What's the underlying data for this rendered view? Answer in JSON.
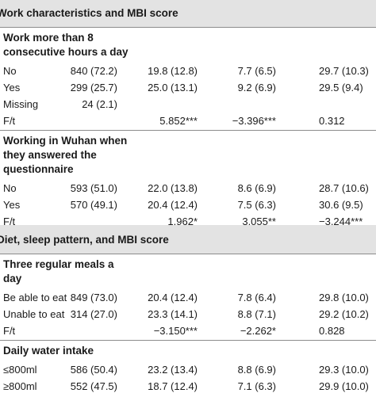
{
  "sections": [
    {
      "title": "Work characteristics and MBI score",
      "groups": [
        {
          "header_lines": [
            "Work more than 8",
            "consecutive hours a day"
          ],
          "rows": [
            {
              "label": "No",
              "n": "840 (72.2)",
              "v1": "19.8 (12.8)",
              "v2": "7.7 (6.5)",
              "v3": "29.7 (10.3)"
            },
            {
              "label": "Yes",
              "n": "299 (25.7)",
              "v1": "25.0 (13.1)",
              "v2": "9.2 (6.9)",
              "v3": "29.5 (9.4)"
            },
            {
              "label": "Missing",
              "n": "24 (2.1)",
              "v1": "",
              "v2": "",
              "v3": ""
            },
            {
              "label": "F/t",
              "n": "",
              "v1": "5.852***",
              "v2": "−3.396***",
              "v3": "0.312"
            }
          ]
        },
        {
          "header_lines": [
            "Working in Wuhan when",
            "they answered the",
            "questionnaire"
          ],
          "rows": [
            {
              "label": "No",
              "n": "593 (51.0)",
              "v1": "22.0 (13.8)",
              "v2": "8.6 (6.9)",
              "v3": "28.7 (10.6)"
            },
            {
              "label": "Yes",
              "n": "570 (49.1)",
              "v1": "20.4 (12.4)",
              "v2": "7.5 (6.3)",
              "v3": "30.6 (9.5)"
            },
            {
              "label": "F/t",
              "n": "",
              "v1": "1.962*",
              "v2": "3.055**",
              "v3": "−3.244***"
            }
          ]
        }
      ]
    },
    {
      "title": "Diet, sleep pattern, and MBI score",
      "groups": [
        {
          "header_lines": [
            "Three regular meals a",
            "day"
          ],
          "rows": [
            {
              "label": "Be able to eat",
              "n": "849 (73.0)",
              "v1": "20.4 (12.4)",
              "v2": "7.8 (6.4)",
              "v3": "29.8 (10.0)"
            },
            {
              "label": "Unable to eat",
              "n": "314 (27.0)",
              "v1": "23.3 (14.1)",
              "v2": "8.8 (7.1)",
              "v3": "29.2 (10.2)"
            },
            {
              "label": "F/t",
              "n": "",
              "v1": "−3.150***",
              "v2": "−2.262*",
              "v3": "0.828"
            }
          ]
        },
        {
          "header_lines": [
            "Daily water intake"
          ],
          "rows": [
            {
              "label": "≤800ml",
              "n": "586 (50.4)",
              "v1": "23.2 (13.4)",
              "v2": "8.8 (6.9)",
              "v3": "29.3 (10.0)"
            },
            {
              "label": "≥800ml",
              "n": "552 (47.5)",
              "v1": "18.7 (12.4)",
              "v2": "7.1 (6.3)",
              "v3": "29.9 (10.0)"
            }
          ]
        }
      ]
    }
  ]
}
